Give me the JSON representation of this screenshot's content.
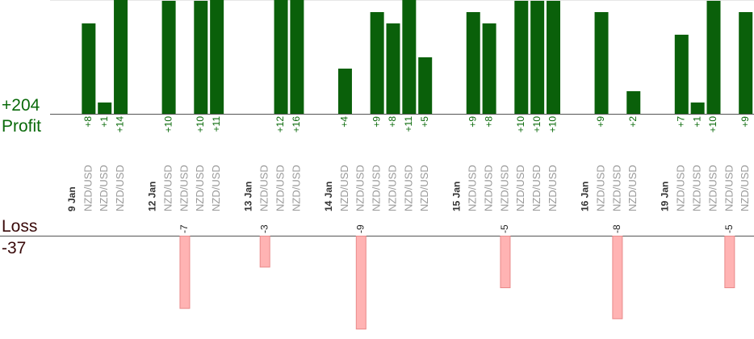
{
  "summary": {
    "profit_total": "+204",
    "profit_label": "Profit",
    "loss_label": "Loss",
    "loss_total": "-37"
  },
  "colors": {
    "profit_text": "#0a6a0a",
    "profit_bar": "#0a600a",
    "loss_text": "#3a0a0a",
    "loss_bar_fill": "#ffb3b3",
    "loss_bar_stroke": "#e98a8a",
    "label_text": "#999999",
    "date_text": "#333333"
  },
  "chart_data": {
    "type": "bar",
    "profit_bar_labels": [
      "+8",
      "+1",
      "+14",
      "+10",
      "+10",
      "+11",
      "+12",
      "+16",
      "+4",
      "+9",
      "+8",
      "+11",
      "+5",
      "+9",
      "+8",
      "+10",
      "+10",
      "+10",
      "+9",
      "+2",
      "+7",
      "+1",
      "+10",
      "+9"
    ],
    "profit_values": [
      8,
      1,
      14,
      10,
      10,
      11,
      12,
      16,
      4,
      9,
      8,
      11,
      5,
      9,
      8,
      10,
      10,
      10,
      9,
      2,
      7,
      1,
      10,
      9
    ],
    "loss_bar_labels": [
      "-7",
      "-3",
      "-9",
      "-5",
      "-8",
      "-5"
    ],
    "loss_values": [
      7,
      3,
      9,
      5,
      8,
      5
    ],
    "rows": [
      {
        "t": "d",
        "label": "9 Jan"
      },
      {
        "t": "p",
        "label": "NZD/USD",
        "v": 8
      },
      {
        "t": "p",
        "label": "NZD/USD",
        "v": 1
      },
      {
        "t": "p",
        "label": "NZD/USD",
        "v": 14
      },
      {
        "t": "g"
      },
      {
        "t": "d",
        "label": "12 Jan"
      },
      {
        "t": "p",
        "label": "NZD/USD",
        "v": 10
      },
      {
        "t": "l",
        "label": "NZD/USD",
        "v": 7
      },
      {
        "t": "p",
        "label": "NZD/USD",
        "v": 10
      },
      {
        "t": "p",
        "label": "NZD/USD",
        "v": 11
      },
      {
        "t": "g"
      },
      {
        "t": "d",
        "label": "13 Jan"
      },
      {
        "t": "l",
        "label": "NZD/USD",
        "v": 3
      },
      {
        "t": "p",
        "label": "NZD/USD",
        "v": 12
      },
      {
        "t": "p",
        "label": "NZD/USD",
        "v": 16
      },
      {
        "t": "g"
      },
      {
        "t": "d",
        "label": "14 Jan"
      },
      {
        "t": "p",
        "label": "NZD/USD",
        "v": 4
      },
      {
        "t": "l",
        "label": "NZD/USD",
        "v": 9
      },
      {
        "t": "p",
        "label": "NZD/USD",
        "v": 9
      },
      {
        "t": "p",
        "label": "NZD/USD",
        "v": 8
      },
      {
        "t": "p",
        "label": "NZD/USD",
        "v": 11
      },
      {
        "t": "p",
        "label": "NZD/USD",
        "v": 5
      },
      {
        "t": "g"
      },
      {
        "t": "d",
        "label": "15 Jan"
      },
      {
        "t": "p",
        "label": "NZD/USD",
        "v": 9
      },
      {
        "t": "p",
        "label": "NZD/USD",
        "v": 8
      },
      {
        "t": "l",
        "label": "NZD/USD",
        "v": 5
      },
      {
        "t": "p",
        "label": "NZD/USD",
        "v": 10
      },
      {
        "t": "p",
        "label": "NZD/USD",
        "v": 10
      },
      {
        "t": "p",
        "label": "NZD/USD",
        "v": 10
      },
      {
        "t": "g"
      },
      {
        "t": "d",
        "label": "16 Jan"
      },
      {
        "t": "p",
        "label": "NZD/USD",
        "v": 9
      },
      {
        "t": "l",
        "label": "NZD/USD",
        "v": 8
      },
      {
        "t": "p",
        "label": "NZD/USD",
        "v": 2
      },
      {
        "t": "g"
      },
      {
        "t": "d",
        "label": "19 Jan"
      },
      {
        "t": "p",
        "label": "NZD/USD",
        "v": 7
      },
      {
        "t": "p",
        "label": "NZD/USD",
        "v": 1
      },
      {
        "t": "p",
        "label": "NZD/USD",
        "v": 10
      },
      {
        "t": "l",
        "label": "NZD/USD",
        "v": 5
      },
      {
        "t": "p",
        "label": "NZD/USD",
        "v": 9
      }
    ]
  }
}
